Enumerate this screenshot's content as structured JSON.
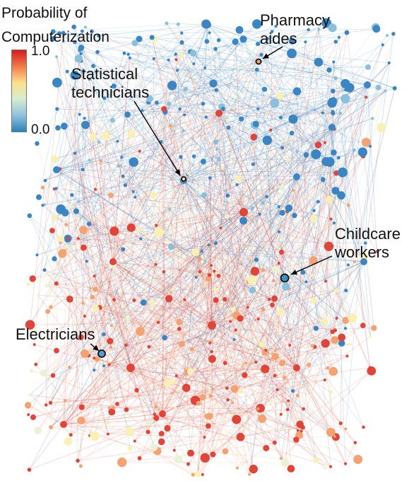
{
  "legend": {
    "title_line1": "Probability of",
    "title_line2": "Computerization",
    "max_label": "1.0",
    "min_label": "0.0",
    "scale_colors": [
      "#d7191c",
      "#f07c4a",
      "#fee08b",
      "#d4edd0",
      "#8fc2dd",
      "#2b83ba"
    ]
  },
  "annotations": {
    "pharmacy": {
      "line1": "Pharmacy",
      "line2": "aides"
    },
    "statistical": {
      "line1": "Statistical",
      "line2": "technicians"
    },
    "childcare": {
      "line1": "Childcare",
      "line2": "workers"
    },
    "electricians": {
      "line1": "Electricians"
    }
  },
  "highlight_colors": {
    "pharmacy": "#f4a36a",
    "statistical": "#fde6a0",
    "childcare": "#3f8fc7",
    "electricians": "#5a9bd0"
  },
  "node_colors": {
    "low": "#3b85c2",
    "low_mid": "#8cbfd9",
    "mid": "#f8f0b4",
    "high_mid": "#f3a272",
    "high": "#e0453a",
    "pale": "#e9f2d6"
  }
}
